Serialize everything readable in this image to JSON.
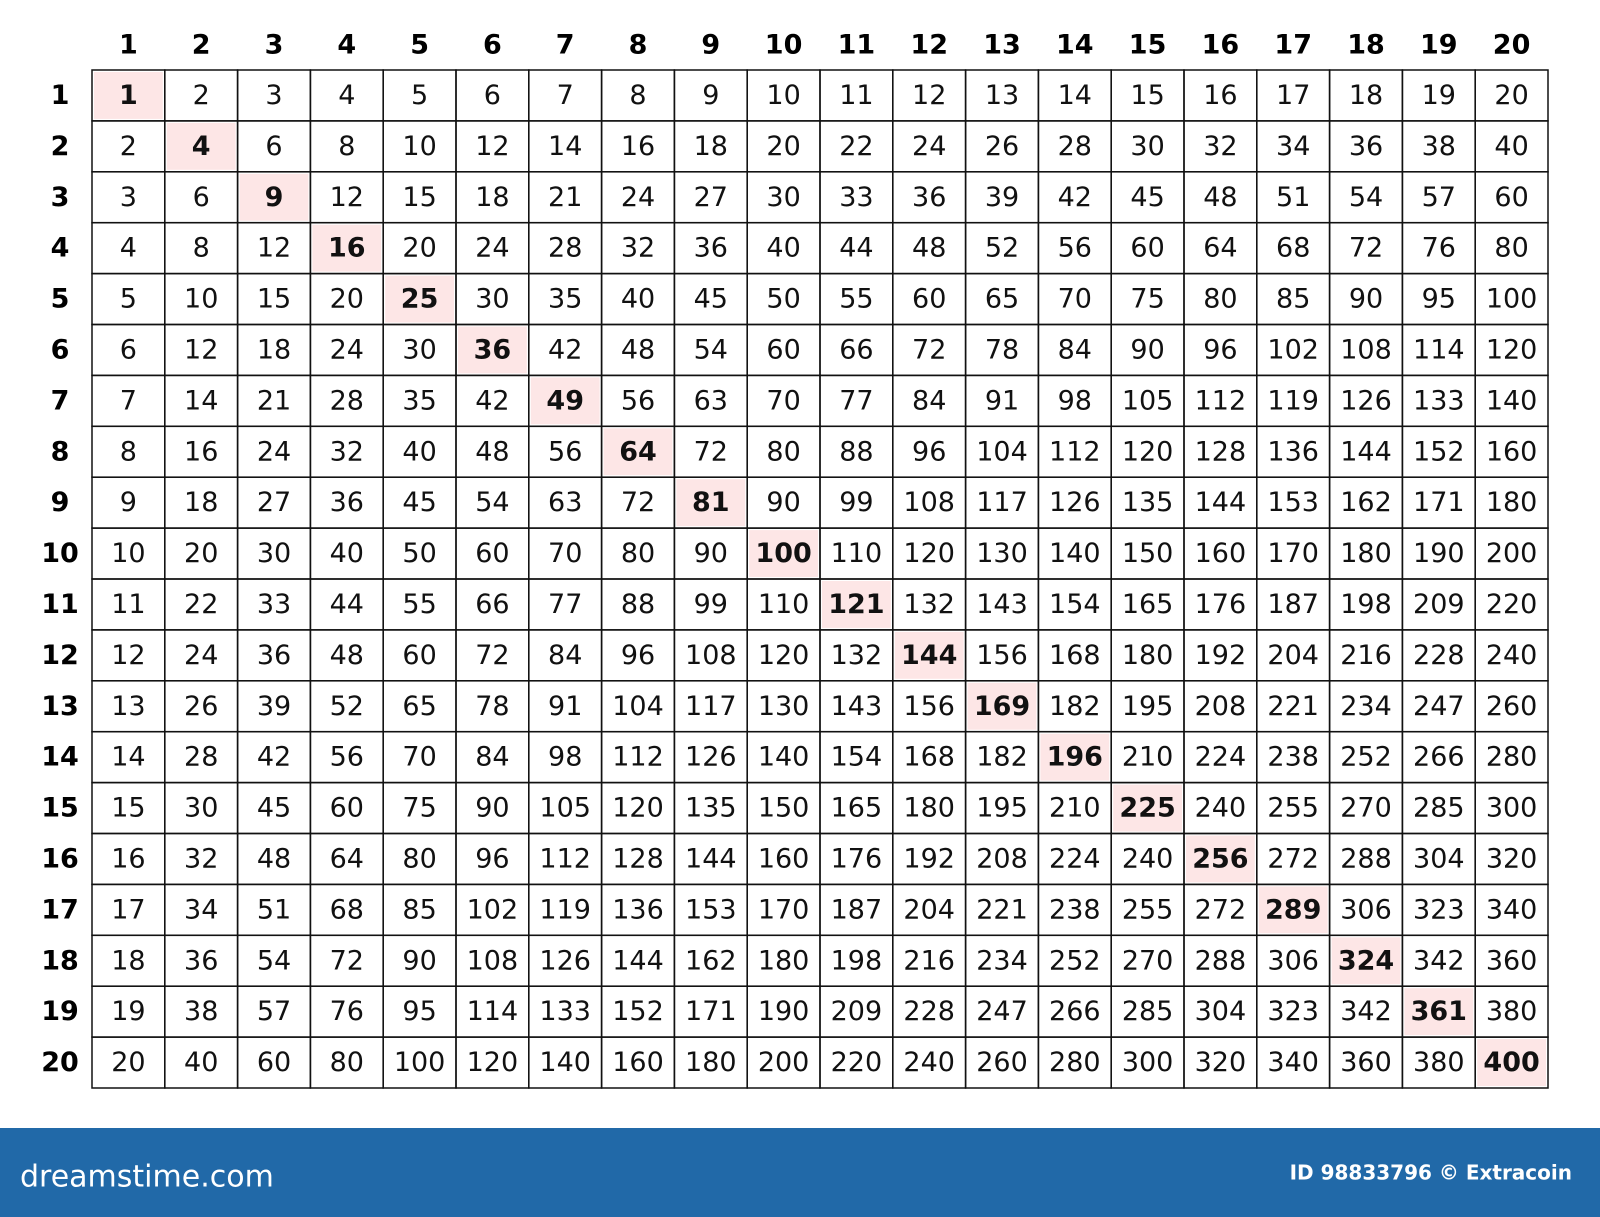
{
  "table": {
    "column_headers": [
      "1",
      "2",
      "3",
      "4",
      "5",
      "6",
      "7",
      "8",
      "9",
      "10",
      "11",
      "12",
      "13",
      "14",
      "15",
      "16",
      "17",
      "18",
      "19",
      "20"
    ],
    "row_headers": [
      "1",
      "2",
      "3",
      "4",
      "5",
      "6",
      "7",
      "8",
      "9",
      "10",
      "11",
      "12",
      "13",
      "14",
      "15",
      "16",
      "17",
      "18",
      "19",
      "20"
    ],
    "rows": [
      [
        1,
        2,
        3,
        4,
        5,
        6,
        7,
        8,
        9,
        10,
        11,
        12,
        13,
        14,
        15,
        16,
        17,
        18,
        19,
        20
      ],
      [
        2,
        4,
        6,
        8,
        10,
        12,
        14,
        16,
        18,
        20,
        22,
        24,
        26,
        28,
        30,
        32,
        34,
        36,
        38,
        40
      ],
      [
        3,
        6,
        9,
        12,
        15,
        18,
        21,
        24,
        27,
        30,
        33,
        36,
        39,
        42,
        45,
        48,
        51,
        54,
        57,
        60
      ],
      [
        4,
        8,
        12,
        16,
        20,
        24,
        28,
        32,
        36,
        40,
        44,
        48,
        52,
        56,
        60,
        64,
        68,
        72,
        76,
        80
      ],
      [
        5,
        10,
        15,
        20,
        25,
        30,
        35,
        40,
        45,
        50,
        55,
        60,
        65,
        70,
        75,
        80,
        85,
        90,
        95,
        100
      ],
      [
        6,
        12,
        18,
        24,
        30,
        36,
        42,
        48,
        54,
        60,
        66,
        72,
        78,
        84,
        90,
        96,
        102,
        108,
        114,
        120
      ],
      [
        7,
        14,
        21,
        28,
        35,
        42,
        49,
        56,
        63,
        70,
        77,
        84,
        91,
        98,
        105,
        112,
        119,
        126,
        133,
        140
      ],
      [
        8,
        16,
        24,
        32,
        40,
        48,
        56,
        64,
        72,
        80,
        88,
        96,
        104,
        112,
        120,
        128,
        136,
        144,
        152,
        160
      ],
      [
        9,
        18,
        27,
        36,
        45,
        54,
        63,
        72,
        81,
        90,
        99,
        108,
        117,
        126,
        135,
        144,
        153,
        162,
        171,
        180
      ],
      [
        10,
        20,
        30,
        40,
        50,
        60,
        70,
        80,
        90,
        100,
        110,
        120,
        130,
        140,
        150,
        160,
        170,
        180,
        190,
        200
      ],
      [
        11,
        22,
        33,
        44,
        55,
        66,
        77,
        88,
        99,
        110,
        121,
        132,
        143,
        154,
        165,
        176,
        187,
        198,
        209,
        220
      ],
      [
        12,
        24,
        36,
        48,
        60,
        72,
        84,
        96,
        108,
        120,
        132,
        144,
        156,
        168,
        180,
        192,
        204,
        216,
        228,
        240
      ],
      [
        13,
        26,
        39,
        52,
        65,
        78,
        91,
        104,
        117,
        130,
        143,
        156,
        169,
        182,
        195,
        208,
        221,
        234,
        247,
        260
      ],
      [
        14,
        28,
        42,
        56,
        70,
        84,
        98,
        112,
        126,
        140,
        154,
        168,
        182,
        196,
        210,
        224,
        238,
        252,
        266,
        280
      ],
      [
        15,
        30,
        45,
        60,
        75,
        90,
        105,
        120,
        135,
        150,
        165,
        180,
        195,
        210,
        225,
        240,
        255,
        270,
        285,
        300
      ],
      [
        16,
        32,
        48,
        64,
        80,
        96,
        112,
        128,
        144,
        160,
        176,
        192,
        208,
        224,
        240,
        256,
        272,
        288,
        304,
        320
      ],
      [
        17,
        34,
        51,
        68,
        85,
        102,
        119,
        136,
        153,
        170,
        187,
        204,
        221,
        238,
        255,
        272,
        289,
        306,
        323,
        340
      ],
      [
        18,
        36,
        54,
        72,
        90,
        108,
        126,
        144,
        162,
        180,
        198,
        216,
        234,
        252,
        270,
        288,
        306,
        324,
        342,
        360
      ],
      [
        19,
        38,
        57,
        76,
        95,
        114,
        133,
        152,
        171,
        190,
        209,
        228,
        247,
        266,
        285,
        304,
        323,
        342,
        361,
        380
      ],
      [
        20,
        40,
        60,
        80,
        100,
        120,
        140,
        160,
        180,
        200,
        220,
        240,
        260,
        280,
        300,
        320,
        340,
        360,
        380,
        400
      ]
    ]
  },
  "footer": {
    "brand": "dreamstime.com",
    "credit": "ID 98833796 © Extracoin"
  }
}
